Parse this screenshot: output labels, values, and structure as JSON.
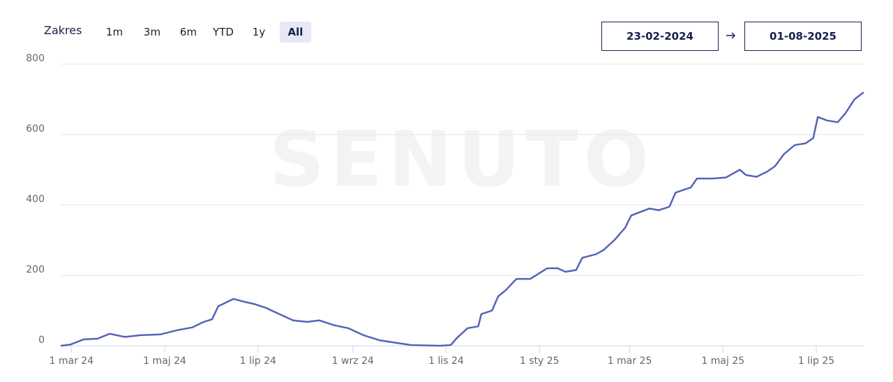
{
  "range_selector": {
    "label": "Zakres",
    "buttons": [
      "1m",
      "3m",
      "6m",
      "YTD",
      "1y",
      "All"
    ],
    "active": "All"
  },
  "date_range": {
    "from": "23-02-2024",
    "to": "01-08-2025"
  },
  "chart_data": {
    "type": "line",
    "watermark": "SENUTO",
    "x": [
      "2024-02-23",
      "2024-02-29",
      "2024-03-09",
      "2024-03-18",
      "2024-03-26",
      "2024-04-05",
      "2024-04-15",
      "2024-04-28",
      "2024-05-10",
      "2024-05-19",
      "2024-05-26",
      "2024-06-01",
      "2024-06-05",
      "2024-06-15",
      "2024-06-22",
      "2024-06-29",
      "2024-07-06",
      "2024-07-15",
      "2024-07-24",
      "2024-08-02",
      "2024-08-10",
      "2024-08-20",
      "2024-08-29",
      "2024-09-08",
      "2024-09-19",
      "2024-09-30",
      "2024-10-09",
      "2024-10-28",
      "2024-11-04",
      "2024-11-08",
      "2024-11-15",
      "2024-11-22",
      "2024-11-24",
      "2024-12-01",
      "2024-12-05",
      "2024-12-10",
      "2024-12-17",
      "2024-12-26",
      "2025-01-06",
      "2025-01-13",
      "2025-01-18",
      "2025-01-25",
      "2025-01-29",
      "2025-02-07",
      "2025-02-12",
      "2025-02-19",
      "2025-02-26",
      "2025-03-02",
      "2025-03-14",
      "2025-03-20",
      "2025-03-27",
      "2025-03-31",
      "2025-04-10",
      "2025-04-14",
      "2025-04-24",
      "2025-05-03",
      "2025-05-12",
      "2025-05-16",
      "2025-05-23",
      "2025-05-30",
      "2025-06-04",
      "2025-06-10",
      "2025-06-17",
      "2025-06-24",
      "2025-06-29",
      "2025-07-02",
      "2025-07-08",
      "2025-07-15",
      "2025-07-20",
      "2025-07-26",
      "2025-08-01"
    ],
    "series": [
      {
        "color": "#5563b8",
        "values": [
          0,
          3,
          18,
          20,
          34,
          25,
          30,
          32,
          45,
          52,
          67,
          75,
          112,
          133,
          125,
          118,
          108,
          90,
          72,
          68,
          72,
          58,
          50,
          30,
          15,
          8,
          2,
          0,
          2,
          22,
          50,
          55,
          90,
          100,
          140,
          158,
          190,
          190,
          220,
          220,
          210,
          215,
          250,
          260,
          272,
          300,
          335,
          370,
          390,
          385,
          395,
          435,
          450,
          475,
          475,
          478,
          500,
          485,
          480,
          495,
          510,
          545,
          570,
          575,
          590,
          650,
          640,
          635,
          660,
          700,
          720
        ]
      }
    ],
    "xlim": [
      "2024-02-23",
      "2025-08-01"
    ],
    "xticks": [
      {
        "value": "2024-03-01",
        "label": "1 mar 24"
      },
      {
        "value": "2024-05-01",
        "label": "1 maj 24"
      },
      {
        "value": "2024-07-01",
        "label": "1 lip 24"
      },
      {
        "value": "2024-09-01",
        "label": "1 wrz 24"
      },
      {
        "value": "2024-11-01",
        "label": "1 lis 24"
      },
      {
        "value": "2025-01-01",
        "label": "1 sty 25"
      },
      {
        "value": "2025-03-01",
        "label": "1 mar 25"
      },
      {
        "value": "2025-05-01",
        "label": "1 maj 25"
      },
      {
        "value": "2025-07-01",
        "label": "1 lip 25"
      }
    ],
    "ylim": [
      0,
      800
    ],
    "yticks": [
      0,
      200,
      400,
      600,
      800
    ],
    "grid": true
  }
}
